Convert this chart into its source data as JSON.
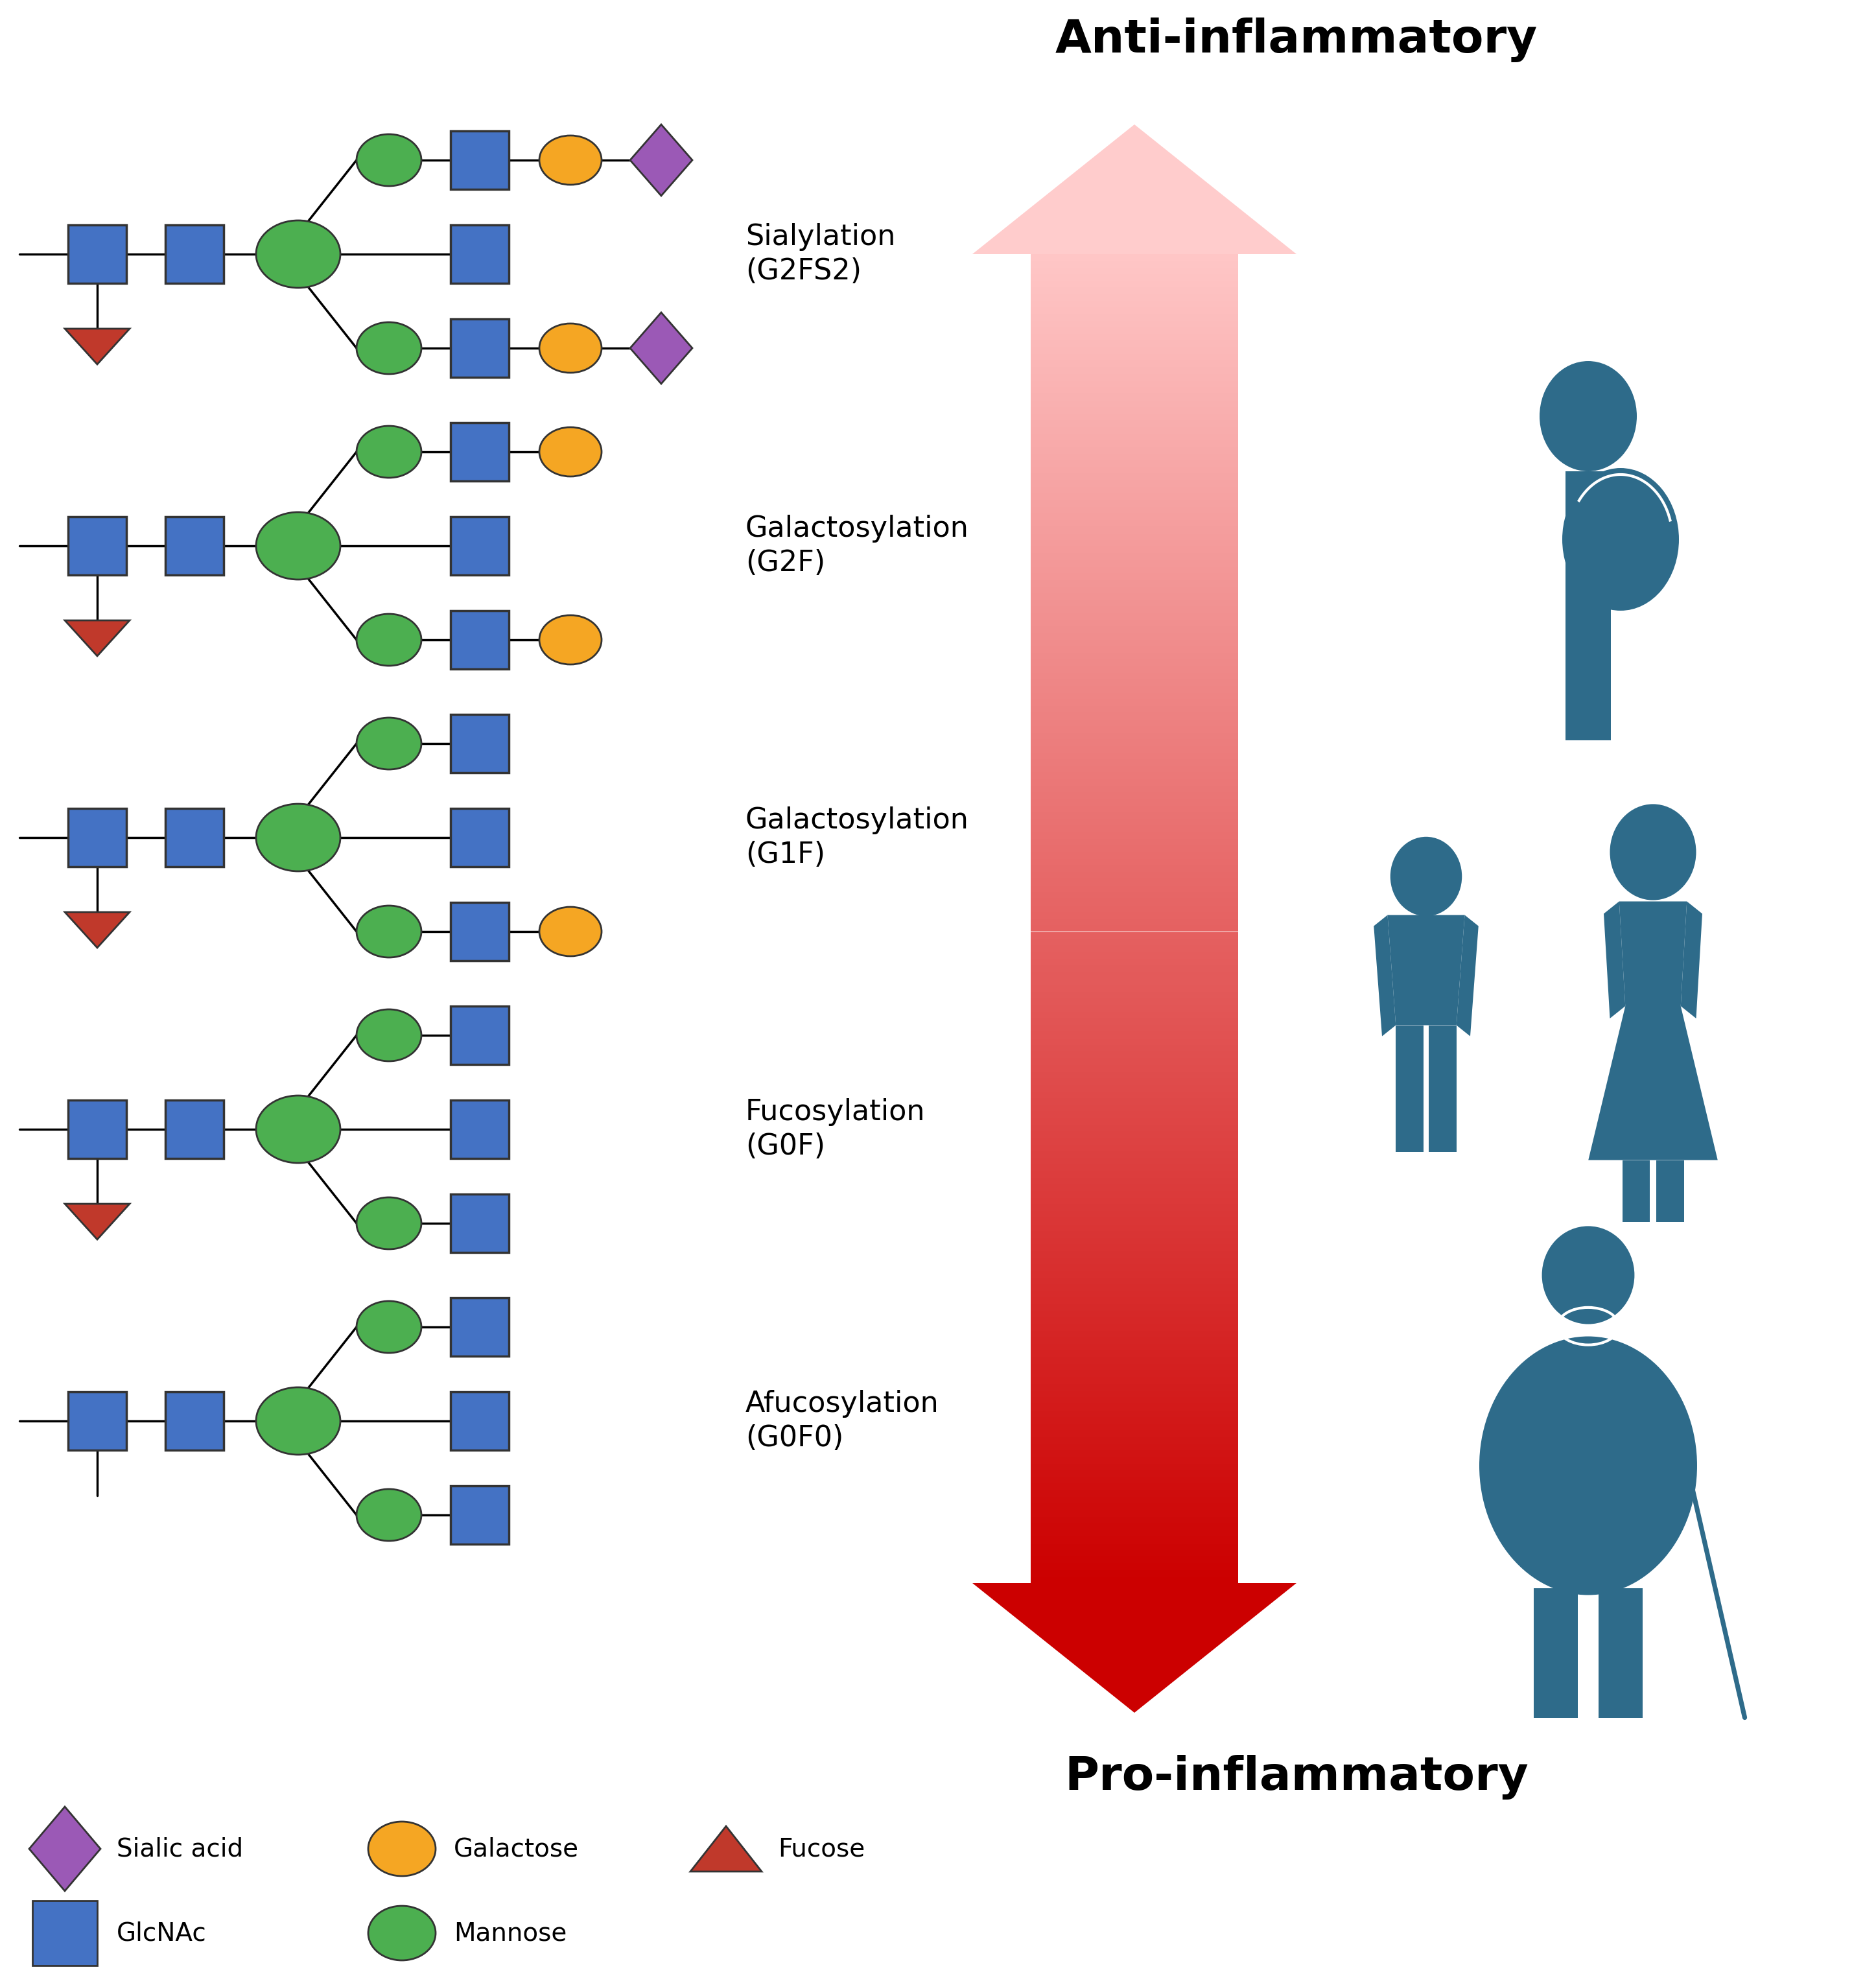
{
  "title_anti": "Anti-inflammatory",
  "title_pro": "Pro-inflammatory",
  "glycan_labels": [
    "Sialylation\n(G2FS2)",
    "Galactosylation\n(G2F)",
    "Galactosylation\n(G1F)",
    "Fucosylation\n(G0F)",
    "Afucosylation\n(G0F0)"
  ],
  "colors": {
    "glcnac": "#4472C4",
    "mannose": "#4CAF50",
    "galactose": "#F5A623",
    "sialic_acid": "#9B59B6",
    "fucose": "#C0392B",
    "person": "#2E6B8A",
    "background": "#ffffff",
    "arrow_top": "#FFCCCC",
    "arrow_bottom": "#CC0000"
  }
}
